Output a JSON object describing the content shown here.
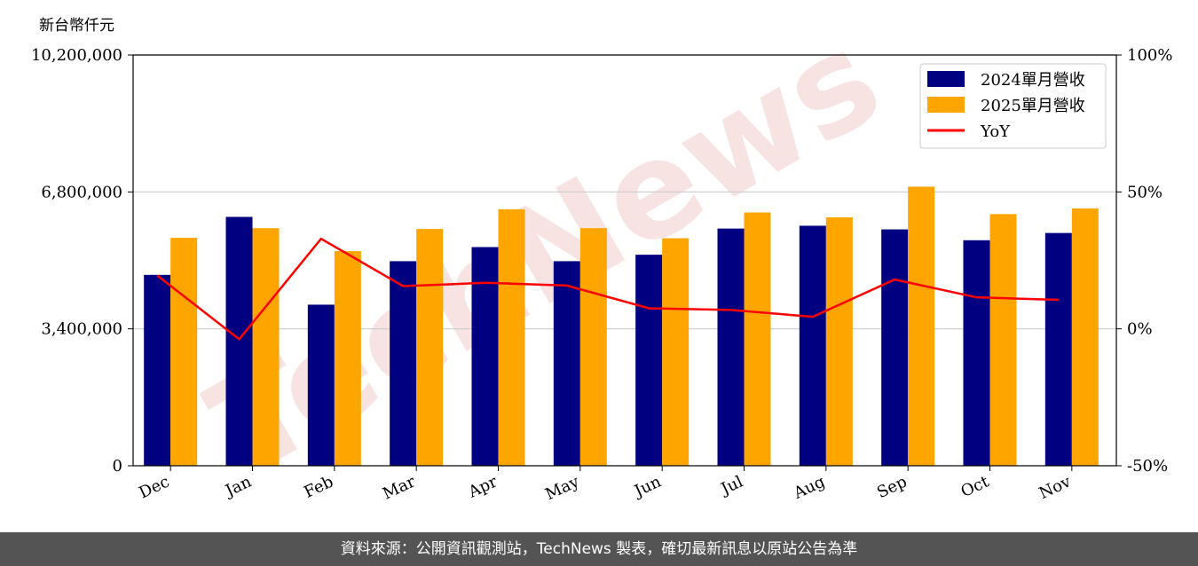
{
  "footer": {
    "text": "資料來源：公開資訊觀測站，TechNews 製表，確切最新訊息以原站公告為準"
  },
  "watermark": {
    "text": "TechNews"
  },
  "chart_data": {
    "type": "bar",
    "unit_label": "新台幣仟元",
    "categories": [
      "Dec",
      "Jan",
      "Feb",
      "Mar",
      "Apr",
      "May",
      "Jun",
      "Jul",
      "Aug",
      "Sep",
      "Oct",
      "Nov"
    ],
    "series": [
      {
        "name": "2024單月營收",
        "type": "bar",
        "color": "#000080",
        "values": [
          4740000,
          6180000,
          4000000,
          5080000,
          5430000,
          5080000,
          5240000,
          5890000,
          5960000,
          5870000,
          5600000,
          5780000
        ]
      },
      {
        "name": "2025單月營收",
        "type": "bar",
        "color": "#FFA500",
        "values": [
          5660000,
          5900000,
          5330000,
          5880000,
          6370000,
          5900000,
          5650000,
          6290000,
          6170000,
          6930000,
          6250000,
          6390000
        ]
      },
      {
        "name": "YoY",
        "type": "line",
        "axis": "right",
        "color": "#FF0000",
        "values": [
          19.5,
          -3.8,
          32.9,
          15.6,
          16.8,
          15.8,
          7.5,
          6.9,
          4.4,
          18.0,
          11.5,
          10.6
        ]
      }
    ],
    "y_left": {
      "ylim": [
        0,
        10200000
      ],
      "ticks": [
        0,
        3400000,
        6800000,
        10200000
      ],
      "tick_labels": [
        "0",
        "3,400,000",
        "6,800,000",
        "10,200,000"
      ]
    },
    "y_right": {
      "ylim": [
        -50,
        100
      ],
      "ticks": [
        -50,
        0,
        50,
        100
      ],
      "tick_labels": [
        "-50%",
        "0%",
        "50%",
        "100%"
      ]
    },
    "grid": "horizontal",
    "legend": "top-right"
  }
}
